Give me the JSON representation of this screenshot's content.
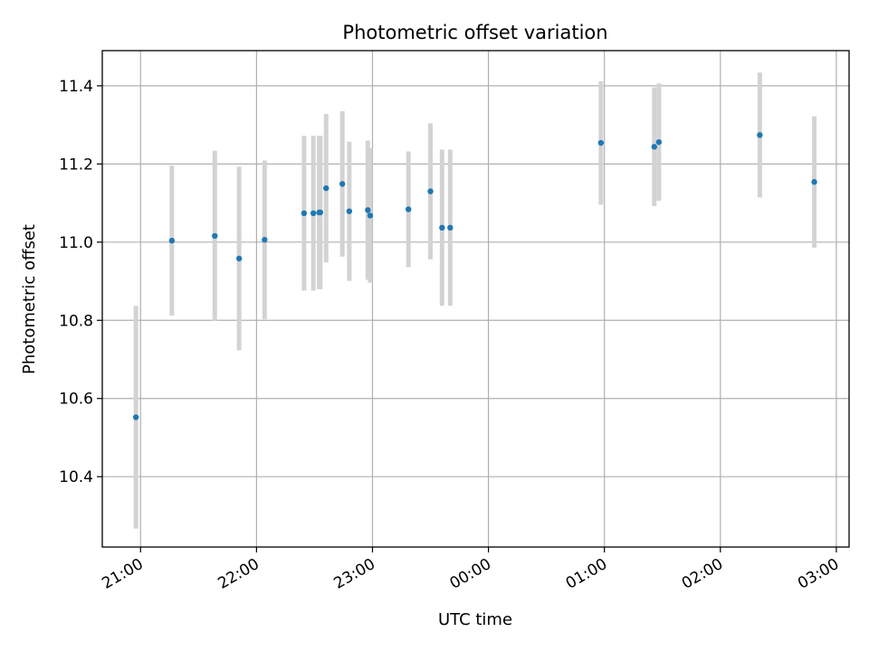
{
  "chart_data": {
    "type": "scatter",
    "title": "Photometric offset variation",
    "xlabel": "UTC time",
    "ylabel": "Photometric offset",
    "x_ticks": [
      {
        "label": "21:00",
        "hours": 21.0
      },
      {
        "label": "22:00",
        "hours": 22.0
      },
      {
        "label": "23:00",
        "hours": 23.0
      },
      {
        "label": "00:00",
        "hours": 24.0
      },
      {
        "label": "01:00",
        "hours": 25.0
      },
      {
        "label": "02:00",
        "hours": 26.0
      },
      {
        "label": "03:00",
        "hours": 27.0
      }
    ],
    "y_ticks": [
      10.4,
      10.6,
      10.8,
      11.0,
      11.2,
      11.4
    ],
    "xlim_hours": [
      20.67,
      27.11
    ],
    "ylim": [
      10.22,
      11.49
    ],
    "grid": true,
    "colors": {
      "point": "#1f77b4",
      "errorbar": "#d3d3d3",
      "grid": "#b0b0b0",
      "axis": "#000000"
    },
    "points": [
      {
        "time": "20:57",
        "hours": 20.96,
        "y": 10.552,
        "err": 0.285
      },
      {
        "time": "21:16",
        "hours": 21.27,
        "y": 11.004,
        "err": 0.192
      },
      {
        "time": "21:38",
        "hours": 21.64,
        "y": 11.016,
        "err": 0.218
      },
      {
        "time": "21:51",
        "hours": 21.85,
        "y": 10.958,
        "err": 0.235
      },
      {
        "time": "22:04",
        "hours": 22.07,
        "y": 11.006,
        "err": 0.203
      },
      {
        "time": "22:25",
        "hours": 22.41,
        "y": 11.074,
        "err": 0.198
      },
      {
        "time": "22:29",
        "hours": 22.49,
        "y": 11.074,
        "err": 0.198
      },
      {
        "time": "22:32",
        "hours": 22.54,
        "y": 11.076,
        "err": 0.196
      },
      {
        "time": "22:33",
        "hours": 22.55,
        "y": 11.076,
        "err": 0.196
      },
      {
        "time": "22:36",
        "hours": 22.6,
        "y": 11.138,
        "err": 0.19
      },
      {
        "time": "22:44",
        "hours": 22.74,
        "y": 11.149,
        "err": 0.186
      },
      {
        "time": "22:48",
        "hours": 22.8,
        "y": 11.079,
        "err": 0.178
      },
      {
        "time": "22:58",
        "hours": 22.96,
        "y": 11.082,
        "err": 0.178
      },
      {
        "time": "22:59",
        "hours": 22.98,
        "y": 11.068,
        "err": 0.172
      },
      {
        "time": "23:19",
        "hours": 23.31,
        "y": 11.084,
        "err": 0.148
      },
      {
        "time": "23:30",
        "hours": 23.5,
        "y": 11.13,
        "err": 0.174
      },
      {
        "time": "23:36",
        "hours": 23.6,
        "y": 11.037,
        "err": 0.2
      },
      {
        "time": "23:40",
        "hours": 23.67,
        "y": 11.037,
        "err": 0.2
      },
      {
        "time": "00:58",
        "hours": 24.97,
        "y": 11.254,
        "err": 0.158
      },
      {
        "time": "01:25",
        "hours": 25.43,
        "y": 11.244,
        "err": 0.152
      },
      {
        "time": "01:28",
        "hours": 25.47,
        "y": 11.256,
        "err": 0.15
      },
      {
        "time": "02:20",
        "hours": 26.34,
        "y": 11.274,
        "err": 0.16
      },
      {
        "time": "02:48",
        "hours": 26.81,
        "y": 11.154,
        "err": 0.168
      }
    ]
  }
}
